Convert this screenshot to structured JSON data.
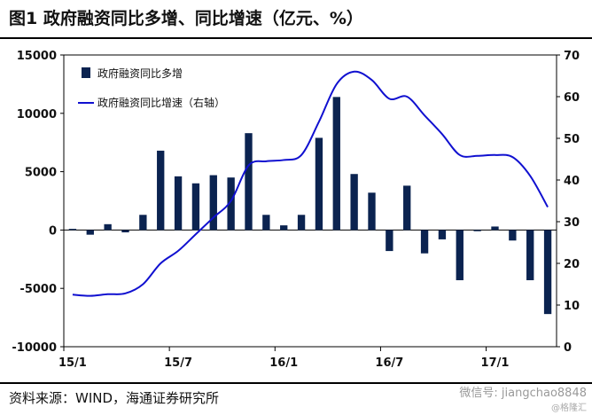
{
  "title": "图1  政府融资同比多增、同比增速（亿元、%）",
  "source": "资料来源：WIND，海通证券研究所",
  "watermark": "微信号: jiangchao8848",
  "watermark2": "@格隆汇",
  "colors": {
    "bar": "#0b2350",
    "line": "#1010d0"
  },
  "chart_data": {
    "type": "bar+line",
    "x_tick_labels": [
      "15/1",
      "15/7",
      "16/1",
      "16/7",
      "17/1"
    ],
    "left_axis": {
      "min": -10000,
      "max": 15000,
      "ticks": [
        15000,
        10000,
        5000,
        0,
        -5000,
        -10000
      ]
    },
    "right_axis": {
      "min": 0,
      "max": 70,
      "ticks": [
        70,
        60,
        50,
        40,
        30,
        20,
        10,
        0
      ]
    },
    "legend": [
      {
        "label": "政府融资同比多增",
        "kind": "bar"
      },
      {
        "label": "政府融资同比增速（右轴）",
        "kind": "line"
      }
    ],
    "months": [
      "2015-01",
      "2015-02",
      "2015-03",
      "2015-04",
      "2015-05",
      "2015-06",
      "2015-07",
      "2015-08",
      "2015-09",
      "2015-10",
      "2015-11",
      "2015-12",
      "2016-01",
      "2016-02",
      "2016-03",
      "2016-04",
      "2016-05",
      "2016-06",
      "2016-07",
      "2016-08",
      "2016-09",
      "2016-10",
      "2016-11",
      "2016-12",
      "2017-01",
      "2017-02",
      "2017-03",
      "2017-04"
    ],
    "series": [
      {
        "name": "政府融资同比多增",
        "axis": "left",
        "values": [
          100,
          -400,
          500,
          -200,
          1300,
          6800,
          4600,
          4000,
          4700,
          4500,
          8300,
          1300,
          400,
          1300,
          7900,
          11400,
          4800,
          3200,
          -1800,
          3800,
          -2000,
          -800,
          -4300,
          -100,
          300,
          -900,
          -4300,
          -7200
        ]
      },
      {
        "name": "政府融资同比增速（右轴）",
        "axis": "right",
        "values": [
          12.5,
          12.2,
          12.6,
          12.8,
          15,
          20,
          23,
          27,
          31,
          35,
          43.5,
          44.5,
          44.8,
          46,
          54,
          63,
          66,
          64,
          59.5,
          60,
          55.5,
          51,
          46,
          45.8,
          46,
          45.5,
          41,
          33.5
        ]
      }
    ]
  }
}
